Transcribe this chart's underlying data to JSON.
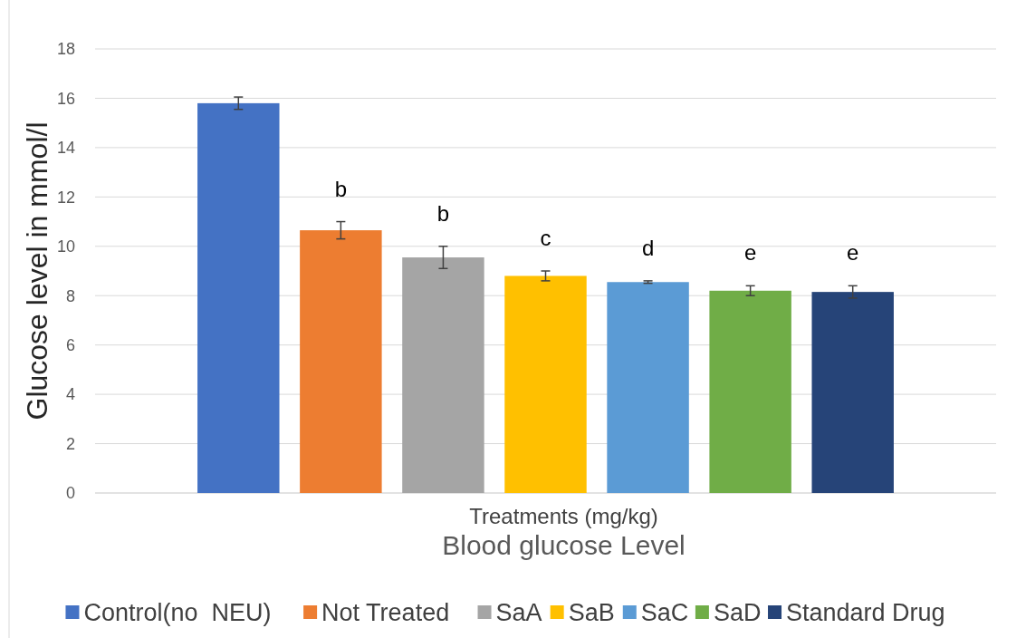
{
  "chart_data": {
    "type": "bar",
    "title": "Blood glucose Level",
    "xlabel": "Treatments (mg/kg)",
    "ylabel": "Glucose level in mmol/l",
    "categories": [
      null
    ],
    "series": [
      {
        "name": "Control(no  NEU)",
        "color": "#4472c4",
        "values": [
          15.8
        ],
        "errors": [
          0.25
        ]
      },
      {
        "name": "Not Treated",
        "color": "#ed7d31",
        "values": [
          10.65
        ],
        "errors": [
          0.35
        ]
      },
      {
        "name": "SaA",
        "color": "#a5a5a5",
        "values": [
          9.55
        ],
        "errors": [
          0.45
        ]
      },
      {
        "name": "SaB",
        "color": "#ffc000",
        "values": [
          8.8
        ],
        "errors": [
          0.2
        ]
      },
      {
        "name": "SaC",
        "color": "#5b9bd5",
        "values": [
          8.55
        ],
        "errors": [
          0.05
        ]
      },
      {
        "name": "SaD",
        "color": "#70ad47",
        "values": [
          8.2
        ],
        "errors": [
          0.2
        ]
      },
      {
        "name": "Standard Drug",
        "color": "#264478",
        "values": [
          8.15
        ],
        "errors": [
          0.25
        ]
      }
    ],
    "annotations": [
      "b",
      "b",
      "c",
      "d",
      "e",
      "e"
    ],
    "ylim": [
      0,
      18
    ],
    "yticks": [
      0,
      2,
      4,
      6,
      8,
      10,
      12,
      14,
      16,
      18
    ],
    "grid": "y",
    "legend": "bottom"
  }
}
